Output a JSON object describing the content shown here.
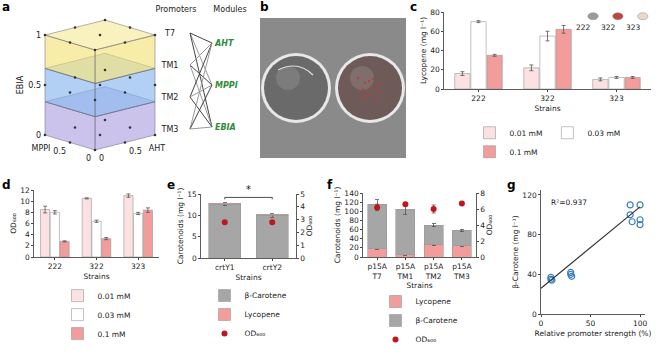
{
  "figure_a": {
    "panel": "a",
    "cube_axes": [
      {
        "label": "EBIA",
        "ticks": [
          0,
          0.5,
          1
        ]
      },
      {
        "label": "MPPI",
        "ticks": [
          0,
          0.5
        ]
      },
      {
        "label": "AHT",
        "ticks": [
          0,
          0.5
        ]
      }
    ],
    "layer_colors": [
      "#a99be0",
      "#7fb0ec",
      "#f2df6e"
    ],
    "promoters": {
      "title": "Promoters",
      "items": [
        "T7",
        "TM1",
        "TM2",
        "TM3"
      ]
    },
    "modules": {
      "title": "Modules",
      "items": [
        "AHT",
        "MPPI",
        "EBIA"
      ],
      "color": "#2e8b3a"
    }
  },
  "figure_b": {
    "panel": "b"
  },
  "chart_data": [
    {
      "panel": "c",
      "type": "bar",
      "categories": [
        "222",
        "322",
        "323"
      ],
      "xlabel": "Strains",
      "ylabel": "Lycopene (mg l⁻¹)",
      "ylim": [
        0,
        80
      ],
      "yticks": [
        0,
        20,
        40,
        60,
        80
      ],
      "grid": false,
      "legend": "bottom",
      "series": [
        {
          "name": "0.01 mM",
          "color": "#fbe1e1",
          "values": [
            16,
            22,
            10
          ],
          "errors": [
            2,
            3,
            1.5
          ]
        },
        {
          "name": "0.03 mM",
          "color": "#ffffff",
          "values": [
            70,
            55,
            12
          ],
          "errors": [
            1,
            5,
            1
          ]
        },
        {
          "name": "0.1 mM",
          "color": "#f29c9c",
          "values": [
            35,
            62,
            12
          ],
          "errors": [
            1,
            4,
            1
          ]
        }
      ],
      "inset_labels": [
        "222",
        "322",
        "323"
      ]
    },
    {
      "panel": "d",
      "type": "bar",
      "categories": [
        "222",
        "322",
        "323"
      ],
      "xlabel": "Strains",
      "ylabel": "OD₆₀₀",
      "ylim": [
        0,
        12
      ],
      "yticks": [
        0,
        2,
        4,
        6,
        8,
        10,
        12
      ],
      "grid": false,
      "legend": "bottom",
      "series": [
        {
          "name": "0.01 mM",
          "color": "#fbe1e1",
          "values": [
            8.5,
            10.5,
            11.0
          ],
          "errors": [
            0.6,
            0.1,
            0.3
          ]
        },
        {
          "name": "0.03 mM",
          "color": "#ffffff",
          "values": [
            8.0,
            6.4,
            7.8
          ],
          "errors": [
            0.3,
            0.2,
            0.2
          ]
        },
        {
          "name": "0.1 mM",
          "color": "#f29c9c",
          "values": [
            2.8,
            3.3,
            8.4
          ],
          "errors": [
            0.1,
            0.2,
            0.4
          ]
        }
      ]
    },
    {
      "panel": "e",
      "type": "bar",
      "stacked": true,
      "categories": [
        "crtY1",
        "crtY2"
      ],
      "xlabel": "Strains",
      "ylabel": "Carotenoids (mg l⁻¹)",
      "y2label": "OD₆₀₀",
      "ylim": [
        0,
        15
      ],
      "yticks": [
        0,
        5,
        10,
        15
      ],
      "y2lim": [
        0,
        5
      ],
      "y2ticks": [
        0,
        1,
        2,
        3,
        4,
        5
      ],
      "grid": false,
      "legend": "bottom",
      "series": [
        {
          "name": "β-Carotene",
          "type": "bar",
          "color": "#a6a6a6",
          "values": [
            12.6,
            10.0
          ],
          "errors": [
            0.3,
            0.4
          ]
        },
        {
          "name": "Lycopene",
          "type": "bar",
          "color": "#f29c9c",
          "values": [
            0.2,
            0.2
          ]
        },
        {
          "name": "OD₆₀₀",
          "type": "scatter",
          "axis": "y2",
          "marker": "circle",
          "color": "#c0161b",
          "values": [
            2.8,
            2.8
          ]
        }
      ],
      "significance": {
        "label": "*",
        "from": "crtY1",
        "to": "crtY2",
        "y": 14.2
      }
    },
    {
      "panel": "f",
      "type": "bar",
      "stacked": true,
      "categories": [
        "p15A T7",
        "p15A TM1",
        "p15A TM2",
        "p15A TM3"
      ],
      "xlabel": "Strains",
      "ylabel": "Carotenoids (mg l⁻¹)",
      "y2label": "OD₆₀₀",
      "ylim": [
        0,
        140
      ],
      "yticks": [
        0,
        20,
        40,
        60,
        80,
        100,
        120,
        140
      ],
      "y2lim": [
        0,
        8
      ],
      "y2ticks": [
        0,
        2,
        4,
        6,
        8
      ],
      "grid": false,
      "legend": "bottom",
      "series": [
        {
          "name": "Lycopene",
          "type": "bar",
          "color": "#f29c9c",
          "values": [
            18,
            5,
            28,
            25
          ],
          "errors": [
            2,
            1,
            3,
            3
          ]
        },
        {
          "name": "β-Carotene",
          "type": "bar",
          "color": "#a6a6a6",
          "values": [
            97,
            100,
            42,
            33
          ],
          "errors": [
            10,
            12,
            4,
            3
          ]
        },
        {
          "name": "OD₆₀₀",
          "type": "scatter",
          "axis": "y2",
          "marker": "circle",
          "color": "#c0161b",
          "values": [
            6.2,
            6.6,
            6.0,
            6.7
          ],
          "errors": [
            0.4,
            0.2,
            0.5,
            0.1
          ]
        }
      ]
    },
    {
      "panel": "g",
      "type": "scatter",
      "xlabel": "Relative promoter strength (%)",
      "ylabel": "β-Carotene (mg l⁻¹)",
      "x": [
        10,
        10,
        11,
        30,
        30,
        31,
        90,
        90,
        92,
        100,
        100,
        100
      ],
      "y": [
        35,
        37,
        34,
        40,
        42,
        38,
        100,
        110,
        93,
        90,
        95,
        110
      ],
      "color": "#3a7fc1",
      "marker": "circle-open",
      "xlim": [
        0,
        105
      ],
      "xticks": [
        0,
        50,
        100
      ],
      "ylim": [
        0,
        125
      ],
      "yticks": [
        0,
        40,
        80,
        120
      ],
      "grid": false,
      "fit": {
        "x": [
          0,
          100
        ],
        "y": [
          26,
          108
        ],
        "color": "#333333"
      },
      "annotation": "R²=0.937"
    }
  ]
}
